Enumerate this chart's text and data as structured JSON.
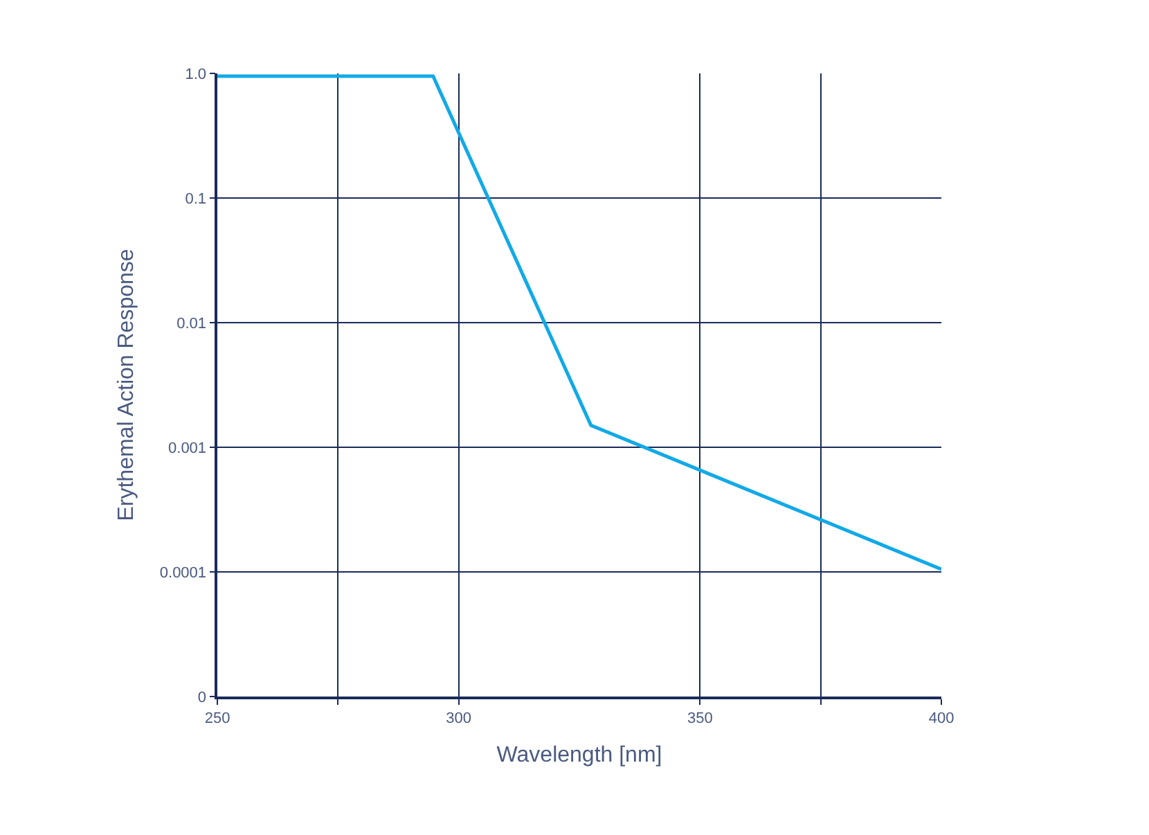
{
  "chart_data": {
    "type": "line",
    "xlabel": "Wavelength [nm]",
    "ylabel": "Erythemal Action Response",
    "x": [
      250,
      294.7,
      327.4,
      400
    ],
    "series": [
      {
        "color": "#12a9e6",
        "values": [
          0.95,
          0.95,
          0.0015,
          0.000105
        ]
      }
    ],
    "xlim": [
      250,
      400
    ],
    "xticks": [
      250,
      {
        "value": 275,
        "label": null
      },
      300,
      350,
      {
        "value": 375,
        "label": null
      },
      400
    ],
    "ylim": [
      1e-05,
      1
    ],
    "yticks": [
      {
        "value": 1,
        "label": "1.0"
      },
      0.1,
      0.01,
      0.001,
      0.0001,
      {
        "value": 1e-05,
        "label": "0"
      }
    ],
    "log": "y",
    "grid": true,
    "marker": "none",
    "line_style": "solid"
  }
}
